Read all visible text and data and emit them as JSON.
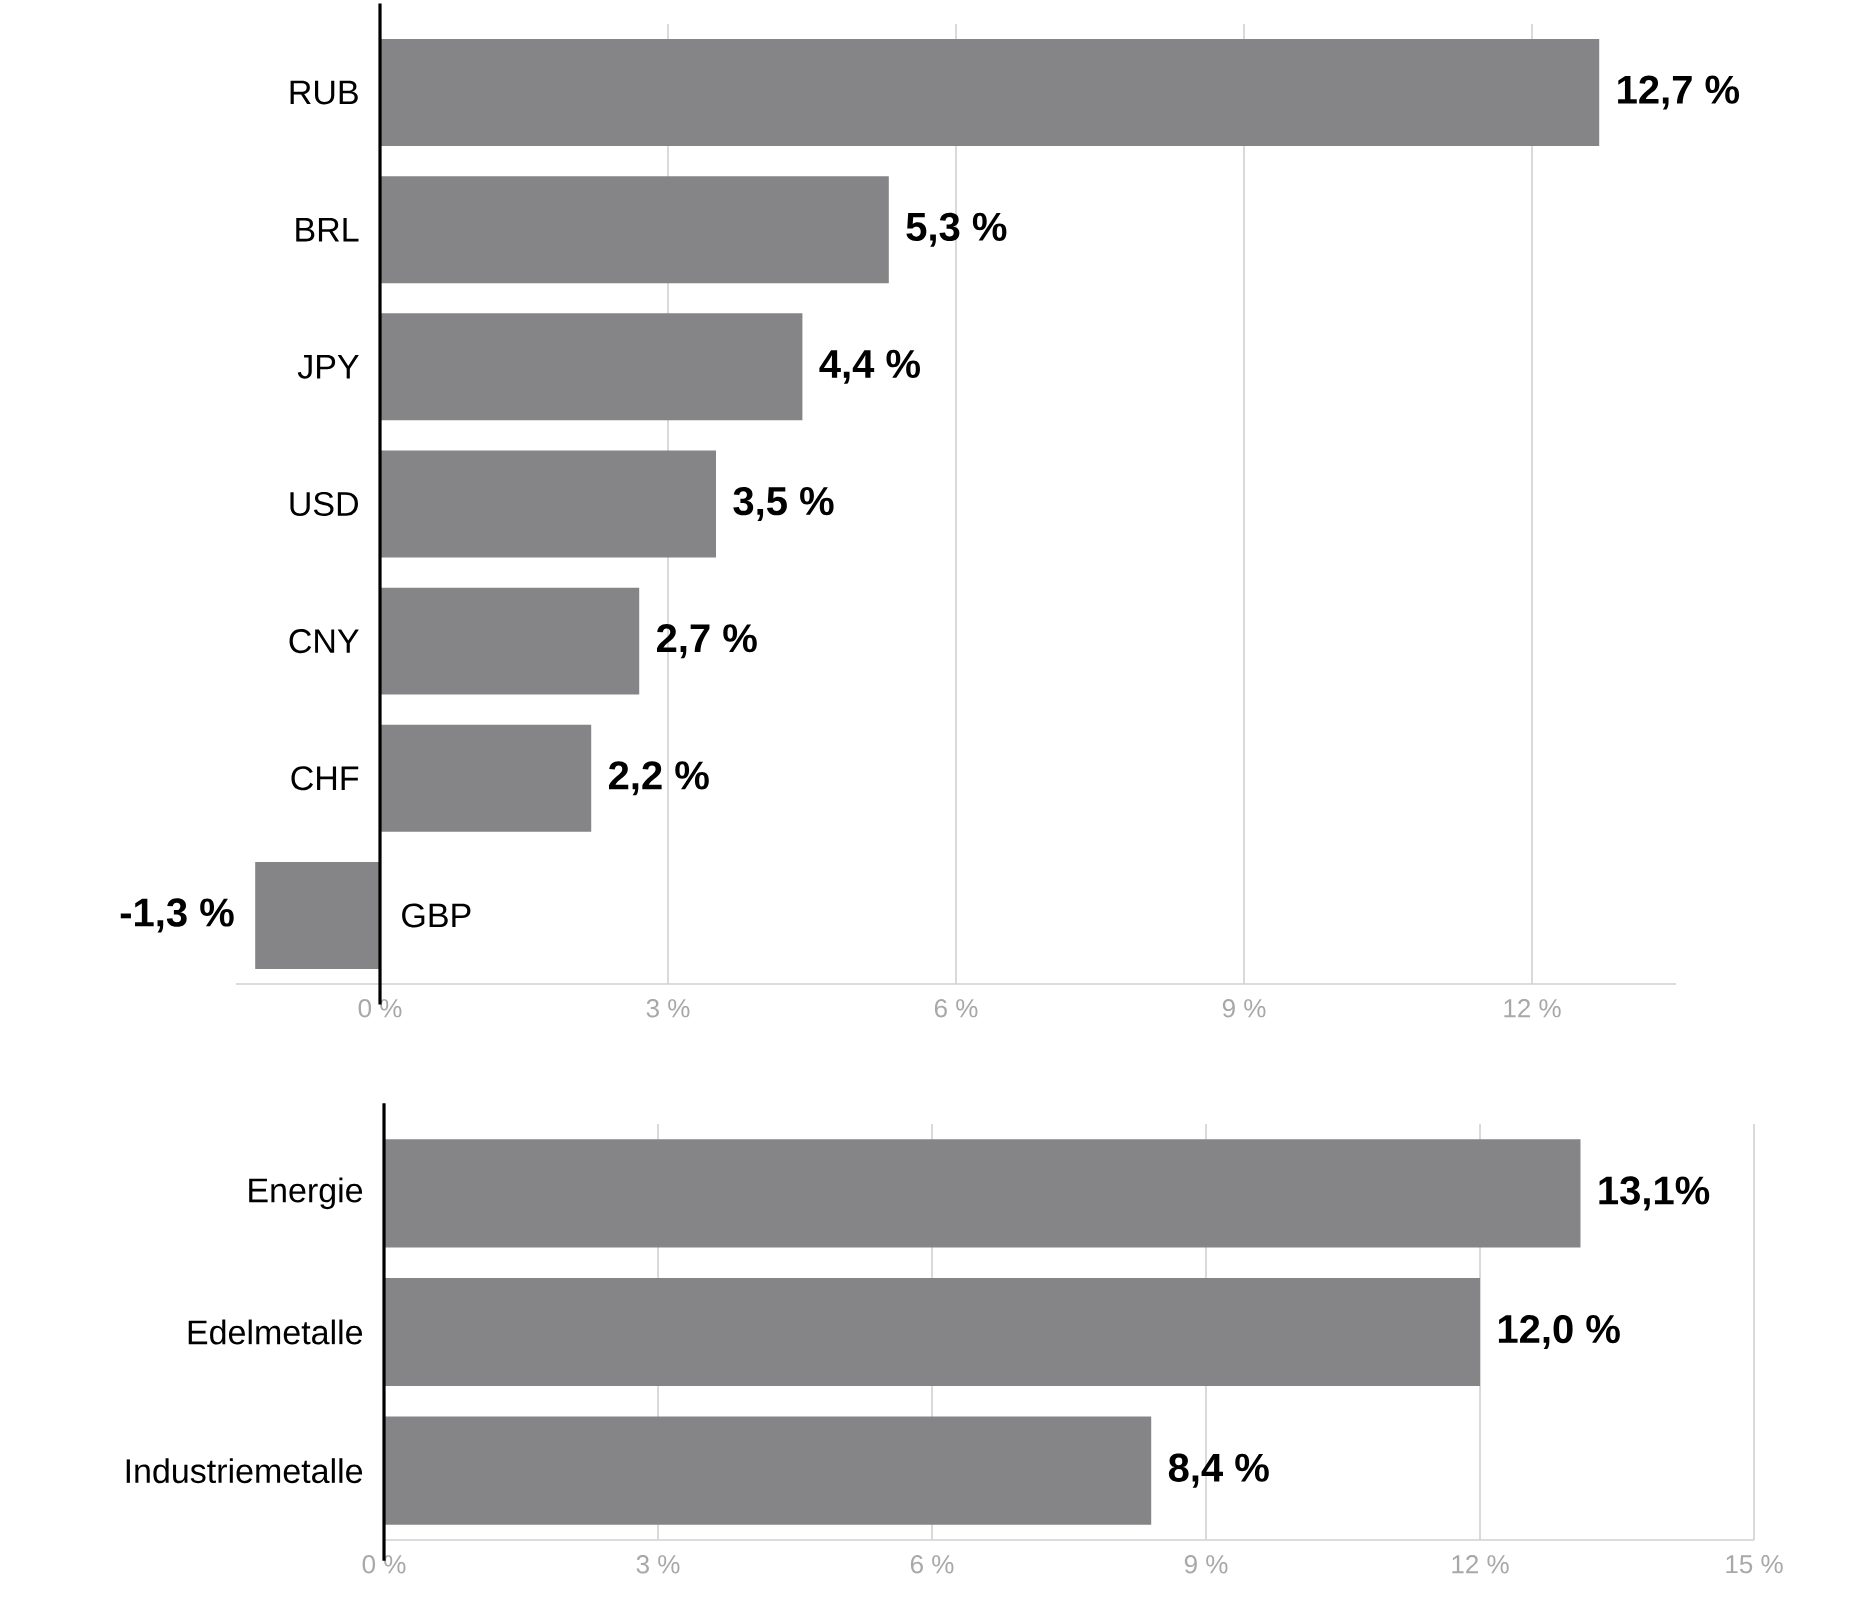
{
  "chart_data": [
    {
      "type": "bar",
      "orientation": "horizontal",
      "categories": [
        "RUB",
        "BRL",
        "JPY",
        "USD",
        "CNY",
        "CHF",
        "GBP"
      ],
      "values": [
        12.7,
        5.3,
        4.4,
        3.5,
        2.7,
        2.2,
        -1.3
      ],
      "value_labels": [
        "12,7 %",
        "5,3 %",
        "4,4 %",
        "3,5 %",
        "2,7 %",
        "2,2 %",
        "-1,3 %"
      ],
      "color": "#858487",
      "xlim": [
        -1.5,
        13.5
      ],
      "xticks": [
        {
          "value": 0,
          "label": "0 %"
        },
        {
          "value": 3,
          "label": "3 %"
        },
        {
          "value": 6,
          "label": "6 %"
        },
        {
          "value": 9,
          "label": "9 %"
        },
        {
          "value": 12,
          "label": "12 %"
        }
      ],
      "grid": "x"
    },
    {
      "type": "bar",
      "orientation": "horizontal",
      "categories": [
        "Energie",
        "Edelmetalle",
        "Industriemetalle"
      ],
      "values": [
        13.1,
        12.0,
        8.4
      ],
      "value_labels": [
        "13,1%",
        "12,0 %",
        "8,4 %"
      ],
      "color": "#858487",
      "xlim": [
        0,
        15
      ],
      "xticks": [
        {
          "value": 0,
          "label": "0 %"
        },
        {
          "value": 3,
          "label": "3 %"
        },
        {
          "value": 6,
          "label": "6 %"
        },
        {
          "value": 9,
          "label": "9 %"
        },
        {
          "value": 12,
          "label": "12 %"
        },
        {
          "value": 15,
          "label": "15 %"
        }
      ],
      "grid": "x"
    }
  ]
}
